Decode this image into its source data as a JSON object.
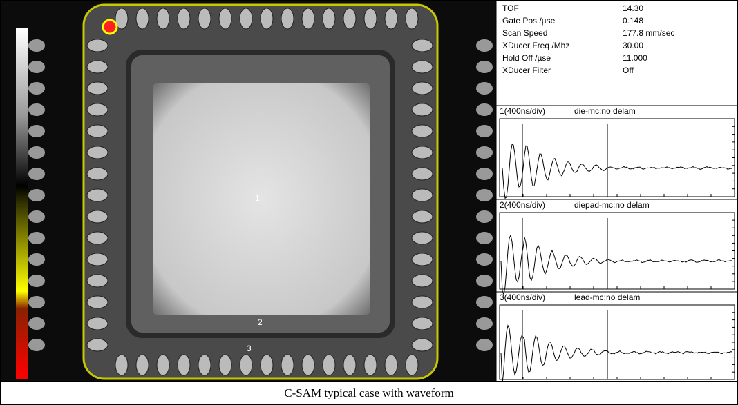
{
  "parameters": [
    {
      "label": "TOF",
      "value": "14.30"
    },
    {
      "label": "Gate Pos /µse",
      "value": "0.148"
    },
    {
      "label": "Scan Speed",
      "value": "177.8 mm/sec"
    },
    {
      "label": "XDucer Freq /Mhz",
      "value": "30.00"
    },
    {
      "label": "Hold Off /µse",
      "value": "11.000"
    },
    {
      "label": "XDucer Filter",
      "value": "Off"
    }
  ],
  "waveforms": [
    {
      "label": "1(400ns/div)",
      "description": "die-mc:no delam"
    },
    {
      "label": "2(400ns/div)",
      "description": "diepad-mc:no delam"
    },
    {
      "label": "3(400ns/div)",
      "description": "lead-mc:no delam"
    }
  ],
  "markers": [
    "1",
    "2",
    "3"
  ],
  "caption": "C-SAM typical case with waveform"
}
